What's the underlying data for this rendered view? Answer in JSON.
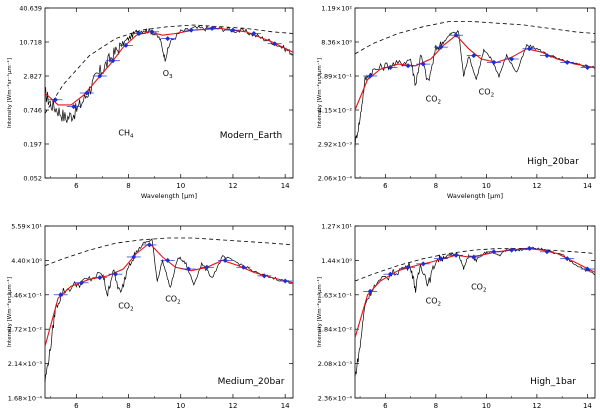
{
  "chart_data": [
    {
      "type": "line",
      "panel_label": "Modern_Earth",
      "xlabel": "Wavelength [μm]",
      "ylabel": "Intensity [Wm⁻²sr⁻¹μm⁻¹]",
      "xlim": [
        4.8,
        14.3
      ],
      "x_ticks": [
        "6",
        "8",
        "10",
        "12",
        "14"
      ],
      "y_ticks": [
        "0.052",
        "0.197",
        "0.746",
        "2.827",
        "10.718",
        "40.639"
      ],
      "annotations": [
        {
          "text": "CH",
          "sub": "4",
          "x": 7.9,
          "y": 0.25
        },
        {
          "text": "O",
          "sub": "3",
          "x": 9.5,
          "y": 0.6
        }
      ],
      "blackbody": [
        [
          4.8,
          0.38
        ],
        [
          5.5,
          0.55
        ],
        [
          6.5,
          0.72
        ],
        [
          7.5,
          0.82
        ],
        [
          8.5,
          0.87
        ],
        [
          9.5,
          0.89
        ],
        [
          10.5,
          0.9
        ],
        [
          11.5,
          0.89
        ],
        [
          12.5,
          0.88
        ],
        [
          13.5,
          0.86
        ],
        [
          14.3,
          0.85
        ]
      ],
      "spectrum": [
        [
          4.8,
          0.5
        ],
        [
          5.0,
          0.44
        ],
        [
          5.3,
          0.4
        ],
        [
          5.6,
          0.35
        ],
        [
          5.9,
          0.38
        ],
        [
          6.2,
          0.44
        ],
        [
          6.5,
          0.52
        ],
        [
          6.8,
          0.6
        ],
        [
          7.1,
          0.66
        ],
        [
          7.4,
          0.72
        ],
        [
          7.7,
          0.78
        ],
        [
          8.0,
          0.82
        ],
        [
          8.3,
          0.86
        ],
        [
          8.6,
          0.87
        ],
        [
          8.9,
          0.86
        ],
        [
          9.2,
          0.82
        ],
        [
          9.4,
          0.7
        ],
        [
          9.6,
          0.8
        ],
        [
          10.0,
          0.86
        ],
        [
          10.5,
          0.88
        ],
        [
          11.0,
          0.88
        ],
        [
          11.5,
          0.88
        ],
        [
          12.0,
          0.87
        ],
        [
          12.5,
          0.86
        ],
        [
          13.0,
          0.83
        ],
        [
          13.5,
          0.8
        ],
        [
          14.0,
          0.76
        ],
        [
          14.3,
          0.73
        ]
      ],
      "fit": [
        [
          4.8,
          0.5
        ],
        [
          5.3,
          0.43
        ],
        [
          5.8,
          0.43
        ],
        [
          6.3,
          0.49
        ],
        [
          6.8,
          0.58
        ],
        [
          7.3,
          0.67
        ],
        [
          7.8,
          0.77
        ],
        [
          8.3,
          0.84
        ],
        [
          8.8,
          0.86
        ],
        [
          9.3,
          0.84
        ],
        [
          9.8,
          0.85
        ],
        [
          10.5,
          0.87
        ],
        [
          11.5,
          0.88
        ],
        [
          12.5,
          0.86
        ],
        [
          13.5,
          0.8
        ],
        [
          14.3,
          0.74
        ]
      ],
      "points": [
        [
          5.2,
          0.46
        ],
        [
          5.9,
          0.42
        ],
        [
          6.4,
          0.5
        ],
        [
          6.9,
          0.6
        ],
        [
          7.4,
          0.69
        ],
        [
          7.9,
          0.78
        ],
        [
          8.4,
          0.85
        ],
        [
          8.9,
          0.86
        ],
        [
          9.5,
          0.82
        ],
        [
          10.4,
          0.87
        ],
        [
          11.2,
          0.88
        ],
        [
          12.0,
          0.87
        ],
        [
          12.8,
          0.85
        ],
        [
          13.6,
          0.79
        ]
      ]
    },
    {
      "type": "line",
      "panel_label": "High_20bar",
      "xlabel": "Wavelength [μm]",
      "ylabel": "Intensity [Wm⁻²sr⁻¹μm⁻¹]",
      "xlim": [
        4.8,
        14.3
      ],
      "x_ticks": [
        "6",
        "8",
        "10",
        "12",
        "14"
      ],
      "y_ticks": [
        "2.06×10⁻⁴",
        "2.92×10⁻³",
        "4.15×10⁻²",
        "5.89×10⁻¹",
        "8.36×10⁰",
        "1.19×10²"
      ],
      "annotations": [
        {
          "text": "CO",
          "sub": "2",
          "x": 7.9,
          "y": 0.45
        },
        {
          "text": "CO",
          "sub": "2",
          "x": 10.0,
          "y": 0.49
        }
      ],
      "blackbody": [
        [
          4.8,
          0.73
        ],
        [
          5.5,
          0.79
        ],
        [
          6.5,
          0.85
        ],
        [
          7.5,
          0.89
        ],
        [
          8.5,
          0.92
        ],
        [
          9.5,
          0.92
        ],
        [
          10.5,
          0.91
        ],
        [
          11.5,
          0.9
        ],
        [
          12.5,
          0.88
        ],
        [
          13.5,
          0.86
        ],
        [
          14.3,
          0.85
        ]
      ],
      "spectrum": [
        [
          4.8,
          0.2
        ],
        [
          5.0,
          0.35
        ],
        [
          5.2,
          0.58
        ],
        [
          5.5,
          0.63
        ],
        [
          6.0,
          0.66
        ],
        [
          6.5,
          0.67
        ],
        [
          7.0,
          0.7
        ],
        [
          7.2,
          0.55
        ],
        [
          7.4,
          0.72
        ],
        [
          7.7,
          0.56
        ],
        [
          8.0,
          0.76
        ],
        [
          8.3,
          0.8
        ],
        [
          8.6,
          0.85
        ],
        [
          8.9,
          0.86
        ],
        [
          9.1,
          0.6
        ],
        [
          9.3,
          0.72
        ],
        [
          9.6,
          0.58
        ],
        [
          9.9,
          0.75
        ],
        [
          10.2,
          0.7
        ],
        [
          10.5,
          0.6
        ],
        [
          10.8,
          0.72
        ],
        [
          11.2,
          0.62
        ],
        [
          11.6,
          0.78
        ],
        [
          12.0,
          0.76
        ],
        [
          12.5,
          0.72
        ],
        [
          13.0,
          0.69
        ],
        [
          13.5,
          0.67
        ],
        [
          14.0,
          0.66
        ],
        [
          14.3,
          0.65
        ]
      ],
      "fit": [
        [
          4.8,
          0.4
        ],
        [
          5.3,
          0.58
        ],
        [
          5.8,
          0.64
        ],
        [
          6.5,
          0.67
        ],
        [
          7.2,
          0.66
        ],
        [
          7.8,
          0.7
        ],
        [
          8.3,
          0.78
        ],
        [
          8.8,
          0.84
        ],
        [
          9.3,
          0.76
        ],
        [
          9.8,
          0.7
        ],
        [
          10.4,
          0.68
        ],
        [
          11.0,
          0.71
        ],
        [
          11.6,
          0.76
        ],
        [
          12.2,
          0.74
        ],
        [
          12.8,
          0.7
        ],
        [
          13.5,
          0.67
        ],
        [
          14.3,
          0.65
        ]
      ],
      "points": [
        [
          5.4,
          0.6
        ],
        [
          6.2,
          0.65
        ],
        [
          6.9,
          0.66
        ],
        [
          7.5,
          0.67
        ],
        [
          8.2,
          0.77
        ],
        [
          8.8,
          0.84
        ],
        [
          9.5,
          0.72
        ],
        [
          10.3,
          0.68
        ],
        [
          11.0,
          0.7
        ],
        [
          11.7,
          0.76
        ],
        [
          12.4,
          0.72
        ],
        [
          13.2,
          0.68
        ],
        [
          14.0,
          0.65
        ]
      ]
    },
    {
      "type": "line",
      "panel_label": "Medium_20bar",
      "xlabel": "",
      "ylabel": "Intensity [Wm⁻²sr⁻¹μm⁻¹]",
      "xlim": [
        4.8,
        14.3
      ],
      "x_ticks": [
        "6",
        "8",
        "10",
        "12",
        "14"
      ],
      "y_ticks": [
        "1.68×10⁻⁴",
        "2.14×10⁻³",
        "2.72×10⁻²",
        "3.46×10⁻¹",
        "4.40×10⁰",
        "5.59×10¹"
      ],
      "annotations": [
        {
          "text": "CO",
          "sub": "2",
          "x": 7.9,
          "y": 0.52
        },
        {
          "text": "CO",
          "sub": "2",
          "x": 9.7,
          "y": 0.56
        }
      ],
      "blackbody": [
        [
          4.8,
          0.77
        ],
        [
          5.5,
          0.81
        ],
        [
          6.5,
          0.86
        ],
        [
          7.5,
          0.9
        ],
        [
          8.5,
          0.92
        ],
        [
          9.5,
          0.93
        ],
        [
          10.5,
          0.93
        ],
        [
          11.5,
          0.92
        ],
        [
          12.5,
          0.91
        ],
        [
          13.5,
          0.9
        ],
        [
          14.3,
          0.89
        ]
      ],
      "spectrum": [
        [
          4.8,
          0.1
        ],
        [
          5.0,
          0.28
        ],
        [
          5.2,
          0.52
        ],
        [
          5.5,
          0.62
        ],
        [
          6.0,
          0.66
        ],
        [
          6.5,
          0.69
        ],
        [
          7.0,
          0.72
        ],
        [
          7.2,
          0.6
        ],
        [
          7.4,
          0.74
        ],
        [
          7.7,
          0.6
        ],
        [
          8.0,
          0.78
        ],
        [
          8.3,
          0.85
        ],
        [
          8.6,
          0.9
        ],
        [
          8.9,
          0.92
        ],
        [
          9.1,
          0.68
        ],
        [
          9.3,
          0.8
        ],
        [
          9.6,
          0.64
        ],
        [
          9.9,
          0.82
        ],
        [
          10.2,
          0.78
        ],
        [
          10.5,
          0.66
        ],
        [
          10.8,
          0.78
        ],
        [
          11.2,
          0.7
        ],
        [
          11.6,
          0.82
        ],
        [
          12.0,
          0.8
        ],
        [
          12.5,
          0.76
        ],
        [
          13.0,
          0.72
        ],
        [
          13.5,
          0.7
        ],
        [
          14.0,
          0.68
        ],
        [
          14.3,
          0.67
        ]
      ],
      "fit": [
        [
          4.8,
          0.3
        ],
        [
          5.3,
          0.58
        ],
        [
          5.8,
          0.65
        ],
        [
          6.5,
          0.69
        ],
        [
          7.2,
          0.71
        ],
        [
          7.8,
          0.75
        ],
        [
          8.3,
          0.84
        ],
        [
          8.8,
          0.9
        ],
        [
          9.3,
          0.82
        ],
        [
          9.8,
          0.76
        ],
        [
          10.4,
          0.74
        ],
        [
          11.0,
          0.76
        ],
        [
          11.6,
          0.8
        ],
        [
          12.2,
          0.77
        ],
        [
          12.8,
          0.73
        ],
        [
          13.5,
          0.7
        ],
        [
          14.3,
          0.67
        ]
      ],
      "points": [
        [
          5.4,
          0.6
        ],
        [
          6.2,
          0.67
        ],
        [
          6.9,
          0.7
        ],
        [
          7.5,
          0.72
        ],
        [
          8.2,
          0.82
        ],
        [
          8.8,
          0.89
        ],
        [
          9.5,
          0.8
        ],
        [
          10.3,
          0.75
        ],
        [
          11.0,
          0.76
        ],
        [
          11.7,
          0.8
        ],
        [
          12.4,
          0.76
        ],
        [
          13.2,
          0.71
        ],
        [
          14.0,
          0.68
        ]
      ]
    },
    {
      "type": "line",
      "panel_label": "High_1bar",
      "xlabel": "",
      "ylabel": "Intensity [Wm⁻²sr⁻¹μm⁻¹]",
      "xlim": [
        4.8,
        14.3
      ],
      "x_ticks": [
        "6",
        "8",
        "10",
        "12",
        "14"
      ],
      "y_ticks": [
        "2.36×10⁻⁴",
        "2.08×10⁻³",
        "1.84×10⁻²",
        "1.63×10⁻¹",
        "1.44×10⁰",
        "1.27×10¹"
      ],
      "annotations": [
        {
          "text": "CO",
          "sub": "2",
          "x": 7.9,
          "y": 0.55
        },
        {
          "text": "CO",
          "sub": "2",
          "x": 9.7,
          "y": 0.63
        }
      ],
      "blackbody": [
        [
          4.8,
          0.68
        ],
        [
          5.5,
          0.72
        ],
        [
          6.5,
          0.77
        ],
        [
          7.5,
          0.81
        ],
        [
          8.5,
          0.84
        ],
        [
          9.5,
          0.86
        ],
        [
          10.5,
          0.87
        ],
        [
          11.5,
          0.87
        ],
        [
          12.5,
          0.86
        ],
        [
          13.5,
          0.85
        ],
        [
          14.3,
          0.84
        ]
      ],
      "spectrum": [
        [
          4.8,
          0.12
        ],
        [
          5.0,
          0.3
        ],
        [
          5.2,
          0.55
        ],
        [
          5.5,
          0.64
        ],
        [
          6.0,
          0.7
        ],
        [
          6.5,
          0.74
        ],
        [
          7.0,
          0.77
        ],
        [
          7.2,
          0.63
        ],
        [
          7.4,
          0.78
        ],
        [
          7.7,
          0.66
        ],
        [
          8.0,
          0.8
        ],
        [
          8.3,
          0.82
        ],
        [
          8.6,
          0.83
        ],
        [
          8.9,
          0.84
        ],
        [
          9.1,
          0.75
        ],
        [
          9.3,
          0.83
        ],
        [
          9.6,
          0.8
        ],
        [
          9.9,
          0.84
        ],
        [
          10.2,
          0.85
        ],
        [
          10.5,
          0.83
        ],
        [
          10.8,
          0.86
        ],
        [
          11.2,
          0.86
        ],
        [
          11.6,
          0.87
        ],
        [
          12.0,
          0.87
        ],
        [
          12.5,
          0.85
        ],
        [
          13.0,
          0.83
        ],
        [
          13.5,
          0.78
        ],
        [
          14.0,
          0.74
        ],
        [
          14.3,
          0.72
        ]
      ],
      "fit": [
        [
          4.8,
          0.35
        ],
        [
          5.3,
          0.6
        ],
        [
          5.8,
          0.68
        ],
        [
          6.5,
          0.74
        ],
        [
          7.2,
          0.77
        ],
        [
          7.8,
          0.79
        ],
        [
          8.3,
          0.81
        ],
        [
          8.8,
          0.83
        ],
        [
          9.3,
          0.82
        ],
        [
          9.8,
          0.83
        ],
        [
          10.4,
          0.85
        ],
        [
          11.0,
          0.86
        ],
        [
          11.6,
          0.87
        ],
        [
          12.2,
          0.86
        ],
        [
          12.8,
          0.84
        ],
        [
          13.5,
          0.79
        ],
        [
          14.3,
          0.73
        ]
      ],
      "points": [
        [
          5.4,
          0.62
        ],
        [
          6.2,
          0.72
        ],
        [
          6.9,
          0.76
        ],
        [
          7.5,
          0.78
        ],
        [
          8.2,
          0.81
        ],
        [
          8.8,
          0.83
        ],
        [
          9.5,
          0.82
        ],
        [
          10.3,
          0.85
        ],
        [
          11.0,
          0.86
        ],
        [
          11.7,
          0.87
        ],
        [
          12.4,
          0.85
        ],
        [
          13.2,
          0.81
        ],
        [
          14.0,
          0.75
        ]
      ]
    }
  ]
}
